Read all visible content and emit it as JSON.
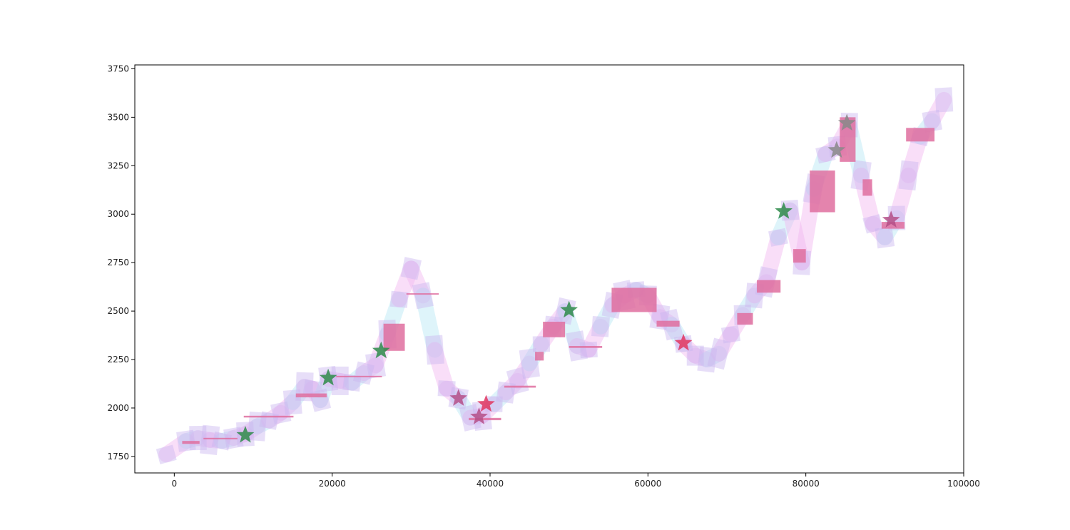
{
  "chart_data": {
    "type": "line",
    "title": "",
    "xlabel": "",
    "ylabel": "",
    "xlim": [
      -5000,
      100000
    ],
    "ylim": [
      1665,
      3770
    ],
    "xticks": [
      0,
      20000,
      40000,
      60000,
      80000,
      100000
    ],
    "xtick_labels": [
      "0",
      "20000",
      "40000",
      "60000",
      "80000",
      "100000"
    ],
    "yticks": [
      1750,
      2000,
      2250,
      2500,
      2750,
      3000,
      3250,
      3500,
      3750
    ],
    "ytick_labels": [
      "1750",
      "2000",
      "2250",
      "2500",
      "2750",
      "3000",
      "3250",
      "3500",
      "3750"
    ],
    "grid": false,
    "legend": "none",
    "colors": {
      "trail_pink": "#f2b8f0",
      "trail_cyan": "#b8e8f4",
      "box_lavender": "#c9b6ef",
      "bar_pink": "#df6f9f",
      "star_green": "#2e8b4a",
      "star_red": "#e0365f"
    },
    "series": [
      {
        "x": [
          -1000,
          1500,
          3000,
          4500,
          6000,
          7500,
          9000,
          10500,
          12000,
          13500,
          15000,
          16500,
          17500,
          18500,
          19500,
          21000,
          22500,
          24000,
          25500,
          27000,
          28500,
          30000,
          31500,
          33000,
          34500,
          36000,
          37500,
          39000,
          40500,
          42000,
          43500,
          45000,
          46500,
          48000,
          49500,
          51000,
          52500,
          54000,
          55500,
          57000,
          58500,
          60000,
          61500,
          63000,
          64500,
          66000,
          67500,
          69000,
          70500,
          72000,
          73500,
          75000,
          76500,
          78000,
          79500,
          81000,
          82500,
          84000,
          85500,
          87000,
          88500,
          90000,
          91500,
          93000,
          94500,
          96000,
          97500
        ],
        "y": [
          1760,
          1830,
          1845,
          1835,
          1830,
          1845,
          1865,
          1905,
          1935,
          1975,
          2030,
          2110,
          2100,
          2040,
          2150,
          2140,
          2130,
          2180,
          2220,
          2380,
          2560,
          2720,
          2580,
          2300,
          2100,
          2050,
          1950,
          1960,
          2020,
          2080,
          2140,
          2230,
          2330,
          2420,
          2500,
          2320,
          2300,
          2420,
          2530,
          2580,
          2610,
          2580,
          2470,
          2430,
          2330,
          2270,
          2250,
          2280,
          2380,
          2480,
          2580,
          2650,
          2880,
          3020,
          2750,
          3130,
          3310,
          3350,
          3460,
          3200,
          2950,
          2880,
          2980,
          3200,
          3400,
          3480,
          3590
        ]
      }
    ],
    "bars": [
      {
        "x0": 1000,
        "x1": 3200,
        "y0": 1815,
        "y1": 1830
      },
      {
        "x0": 3700,
        "x1": 8000,
        "y0": 1840,
        "y1": 1846
      },
      {
        "x0": 8800,
        "x1": 15100,
        "y0": 1951,
        "y1": 1960
      },
      {
        "x0": 15400,
        "x1": 19300,
        "y0": 2055,
        "y1": 2075
      },
      {
        "x0": 20500,
        "x1": 26300,
        "y0": 2162,
        "y1": 2166
      },
      {
        "x0": 26500,
        "x1": 29200,
        "y0": 2295,
        "y1": 2435
      },
      {
        "x0": 29400,
        "x1": 33500,
        "y0": 2588,
        "y1": 2592
      },
      {
        "x0": 37300,
        "x1": 41400,
        "y0": 1937,
        "y1": 1949
      },
      {
        "x0": 41800,
        "x1": 45800,
        "y0": 2105,
        "y1": 2115
      },
      {
        "x0": 45700,
        "x1": 46800,
        "y0": 2245,
        "y1": 2290
      },
      {
        "x0": 46700,
        "x1": 49500,
        "y0": 2365,
        "y1": 2445
      },
      {
        "x0": 50000,
        "x1": 54200,
        "y0": 2310,
        "y1": 2320
      },
      {
        "x0": 55400,
        "x1": 61100,
        "y0": 2495,
        "y1": 2620
      },
      {
        "x0": 61100,
        "x1": 64000,
        "y0": 2420,
        "y1": 2450
      },
      {
        "x0": 71300,
        "x1": 73300,
        "y0": 2430,
        "y1": 2490
      },
      {
        "x0": 73800,
        "x1": 76800,
        "y0": 2595,
        "y1": 2660
      },
      {
        "x0": 78400,
        "x1": 80000,
        "y0": 2750,
        "y1": 2820
      },
      {
        "x0": 80500,
        "x1": 83700,
        "y0": 3010,
        "y1": 3225
      },
      {
        "x0": 84300,
        "x1": 86300,
        "y0": 3270,
        "y1": 3500
      },
      {
        "x0": 87200,
        "x1": 88400,
        "y0": 3095,
        "y1": 3180
      },
      {
        "x0": 89600,
        "x1": 92500,
        "y0": 2925,
        "y1": 2960
      },
      {
        "x0": 92700,
        "x1": 96300,
        "y0": 3375,
        "y1": 3445
      }
    ],
    "stars": [
      {
        "x": 9000,
        "y": 1860,
        "color": "green"
      },
      {
        "x": 19500,
        "y": 2155,
        "color": "green"
      },
      {
        "x": 26200,
        "y": 2295,
        "color": "green"
      },
      {
        "x": 36000,
        "y": 2050,
        "color": "mixed"
      },
      {
        "x": 38600,
        "y": 1955,
        "color": "mixed"
      },
      {
        "x": 39500,
        "y": 2020,
        "color": "red"
      },
      {
        "x": 50000,
        "y": 2505,
        "color": "green"
      },
      {
        "x": 64500,
        "y": 2335,
        "color": "red"
      },
      {
        "x": 77200,
        "y": 3015,
        "color": "green"
      },
      {
        "x": 83900,
        "y": 3330,
        "color": "gray"
      },
      {
        "x": 85200,
        "y": 3470,
        "color": "gray"
      },
      {
        "x": 90800,
        "y": 2970,
        "color": "mixed"
      }
    ]
  }
}
